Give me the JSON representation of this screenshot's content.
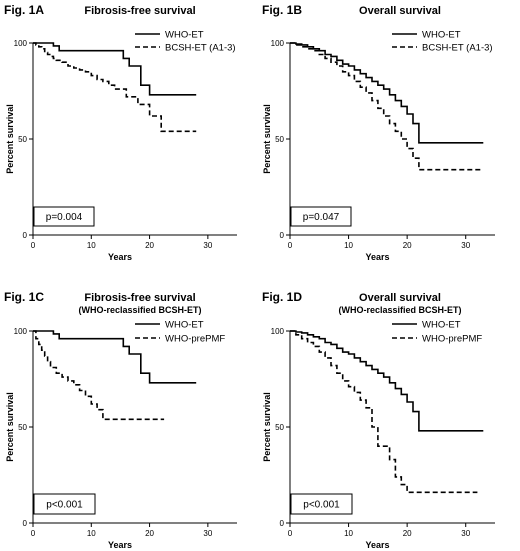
{
  "chart_data": [
    {
      "type": "line",
      "panel_label": "Fig. 1A",
      "title": "Fibrosis-free survival",
      "subtitle": "",
      "xlabel": "Years",
      "ylabel": "Percent survival",
      "xlim": [
        0,
        35
      ],
      "ylim": [
        0,
        100
      ],
      "xticks": [
        0,
        10,
        20,
        30
      ],
      "yticks": [
        0,
        50,
        100
      ],
      "legend_position": "top-right",
      "annotation": "p=0.004",
      "series": [
        {
          "name": "WHO-ET",
          "style": "solid",
          "x": [
            0,
            2,
            3.5,
            4.5,
            7,
            15.5,
            16.5,
            18.5,
            20,
            28
          ],
          "y": [
            100,
            100,
            98.5,
            96,
            96,
            92,
            88,
            78,
            73,
            73
          ]
        },
        {
          "name": "BCSH-ET (A1-3)",
          "style": "dashed",
          "x": [
            0,
            0.5,
            1,
            1.5,
            2,
            2.5,
            3,
            3.5,
            4,
            5,
            6,
            7,
            8,
            9,
            10,
            11,
            12,
            13,
            14,
            16,
            18,
            20,
            22,
            28
          ],
          "y": [
            100,
            99,
            98,
            97,
            95,
            94,
            93,
            92,
            91,
            90,
            88,
            87,
            86,
            85,
            83,
            81,
            80,
            78,
            76,
            72,
            68,
            62,
            54,
            54
          ]
        }
      ]
    },
    {
      "type": "line",
      "panel_label": "Fig. 1B",
      "title": "Overall survival",
      "subtitle": "",
      "xlabel": "Years",
      "ylabel": "Percent survival",
      "xlim": [
        0,
        35
      ],
      "ylim": [
        0,
        100
      ],
      "xticks": [
        0,
        10,
        20,
        30
      ],
      "yticks": [
        0,
        50,
        100
      ],
      "legend_position": "top-right",
      "annotation": "p=0.047",
      "series": [
        {
          "name": "WHO-ET",
          "style": "solid",
          "x": [
            0,
            1,
            2,
            3,
            4,
            5,
            6,
            7,
            8,
            9,
            10,
            11,
            12,
            13,
            14,
            15,
            16,
            17,
            18,
            19,
            20,
            21,
            22,
            33
          ],
          "y": [
            100,
            99.5,
            99,
            98,
            97,
            96,
            94,
            93,
            91,
            89,
            88,
            86,
            84,
            82,
            80,
            78,
            76,
            73,
            70,
            67,
            63,
            58,
            48,
            48
          ]
        },
        {
          "name": "BCSH-ET (A1-3)",
          "style": "dashed",
          "x": [
            0,
            1,
            2,
            3,
            4,
            5,
            6,
            7,
            8,
            9,
            10,
            11,
            12,
            13,
            14,
            15,
            16,
            17,
            18,
            19,
            20,
            21,
            22,
            33
          ],
          "y": [
            100,
            99,
            98,
            97,
            96,
            94,
            92,
            90,
            88,
            85,
            83,
            80,
            77,
            74,
            70,
            66,
            62,
            58,
            54,
            50,
            45,
            40,
            34,
            34
          ]
        }
      ]
    },
    {
      "type": "line",
      "panel_label": "Fig. 1C",
      "title": "Fibrosis-free survival",
      "subtitle": "(WHO-reclassified BCSH-ET)",
      "xlabel": "Years",
      "ylabel": "Percent survival",
      "xlim": [
        0,
        35
      ],
      "ylim": [
        0,
        100
      ],
      "xticks": [
        0,
        10,
        20,
        30
      ],
      "yticks": [
        0,
        50,
        100
      ],
      "legend_position": "top-right",
      "annotation": "p<0.001",
      "series": [
        {
          "name": "WHO-ET",
          "style": "solid",
          "x": [
            0,
            2,
            3.5,
            4.5,
            7,
            15.5,
            16.5,
            18.5,
            20,
            28
          ],
          "y": [
            100,
            100,
            98.5,
            96,
            96,
            92,
            88,
            78,
            73,
            73
          ]
        },
        {
          "name": "WHO-prePMF",
          "style": "dashed",
          "x": [
            0,
            0.5,
            1,
            1.5,
            2,
            2.5,
            3,
            4,
            5,
            6,
            7,
            8,
            9,
            10,
            11,
            12,
            22.5
          ],
          "y": [
            100,
            96,
            93,
            90,
            87,
            84,
            81,
            78,
            76,
            74,
            72,
            69,
            66,
            62,
            59,
            54,
            54
          ]
        }
      ]
    },
    {
      "type": "line",
      "panel_label": "Fig. 1D",
      "title": "Overall survival",
      "subtitle": "(WHO-reclassified BCSH-ET)",
      "xlabel": "Years",
      "ylabel": "Percent survival",
      "xlim": [
        0,
        35
      ],
      "ylim": [
        0,
        100
      ],
      "xticks": [
        0,
        10,
        20,
        30
      ],
      "yticks": [
        0,
        50,
        100
      ],
      "legend_position": "top-right",
      "annotation": "p<0.001",
      "series": [
        {
          "name": "WHO-ET",
          "style": "solid",
          "x": [
            0,
            1,
            2,
            3,
            4,
            5,
            6,
            7,
            8,
            9,
            10,
            11,
            12,
            13,
            14,
            15,
            16,
            17,
            18,
            19,
            20,
            21,
            22,
            33
          ],
          "y": [
            100,
            99.5,
            99,
            98,
            97,
            96,
            94,
            93,
            91,
            89,
            88,
            86,
            84,
            82,
            80,
            78,
            76,
            73,
            70,
            67,
            63,
            58,
            48,
            48
          ]
        },
        {
          "name": "WHO-prePMF",
          "style": "dashed",
          "x": [
            0,
            1,
            2,
            3,
            4,
            5,
            6,
            7,
            8,
            9,
            10,
            11,
            12,
            13,
            14,
            15,
            16,
            17,
            18,
            19,
            20,
            32
          ],
          "y": [
            100,
            98,
            96,
            94,
            92,
            89,
            86,
            82,
            78,
            74,
            71,
            68,
            64,
            60,
            50,
            40,
            40,
            33,
            24,
            20,
            16,
            16
          ]
        }
      ]
    }
  ]
}
